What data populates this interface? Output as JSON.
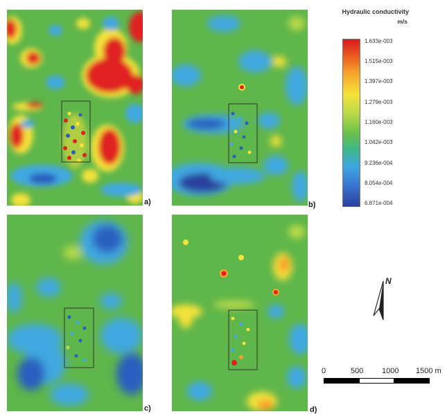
{
  "legend": {
    "title": "Hydraulic conductivity",
    "unit": "m/s",
    "colors": [
      "#d7191c",
      "#f5e23a",
      "#6cc04a",
      "#3fa7e0",
      "#2b3f9e"
    ],
    "labels": [
      "1.633e-003",
      "1.515e-003",
      "1.397e-003",
      "1.279e-003",
      "1.160e-003",
      "1.042e-003",
      "9.236e-004",
      "8.054e-004",
      "6.871e-004"
    ]
  },
  "panels": [
    {
      "id": "a",
      "label": "a)"
    },
    {
      "id": "b",
      "label": "b)"
    },
    {
      "id": "c",
      "label": "c)"
    },
    {
      "id": "d",
      "label": "d)"
    }
  ],
  "north_arrow": {
    "label": "N",
    "icon": "north-arrow-icon"
  },
  "scale_bar": {
    "ticks": [
      "0",
      "500",
      "1000",
      "1500 m"
    ],
    "segment_colors": [
      "#000000",
      "#ffffff",
      "#000000"
    ]
  }
}
